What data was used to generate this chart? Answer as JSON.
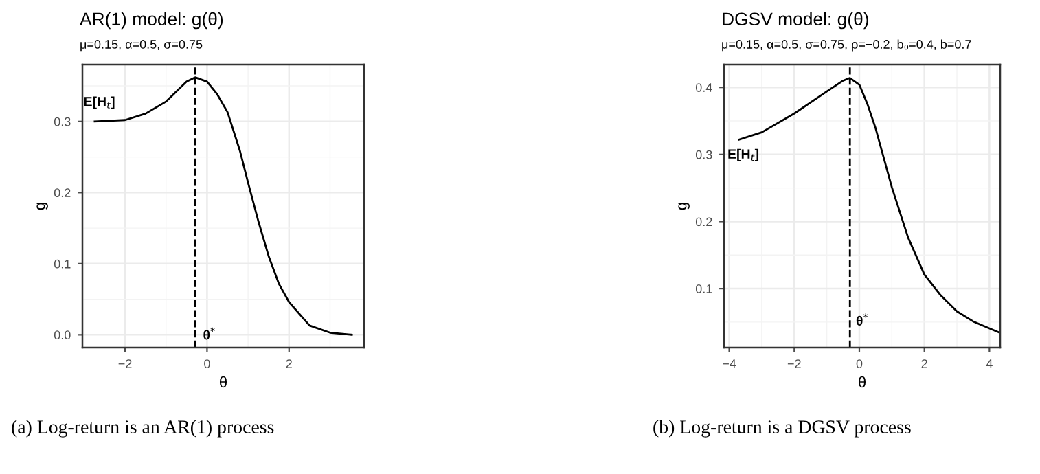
{
  "chart_data": [
    {
      "type": "line",
      "title": "AR(1) model: g(θ)",
      "subtitle": "μ=0.15, α=0.5, σ=0.75",
      "xlabel": "θ",
      "ylabel": "g",
      "x": [
        -2.74,
        -2.0,
        -1.5,
        -1.0,
        -0.5,
        -0.29,
        0.0,
        0.25,
        0.5,
        0.8,
        1.0,
        1.25,
        1.5,
        1.75,
        2.0,
        2.5,
        3.0,
        3.53
      ],
      "series": [
        {
          "color": "#000000",
          "values": [
            0.3,
            0.302,
            0.311,
            0.328,
            0.356,
            0.362,
            0.356,
            0.338,
            0.313,
            0.259,
            0.214,
            0.16,
            0.111,
            0.072,
            0.046,
            0.013,
            0.003,
            0.0
          ]
        }
      ],
      "xlim": [
        -3.04,
        3.83
      ],
      "ylim": [
        -0.018,
        0.38
      ],
      "xticks": [
        -2,
        0,
        2
      ],
      "yticks": [
        {
          "value": 0,
          "label": "0.0"
        },
        0.1,
        0.2,
        0.3
      ],
      "ref_lines": [
        {
          "axis": "x",
          "value": -0.29,
          "line_style": "dashed",
          "color": "#000000"
        }
      ],
      "annotations": [
        "E[H$_{t}$]",
        "θ$^{*}$",
        "(a) Log-return is an AR(1) process"
      ],
      "grid": true,
      "legend": false,
      "marker": "none",
      "line_style": "solid"
    },
    {
      "type": "line",
      "title": "DGSV model: g(θ)",
      "subtitle": "μ=0.15, α=0.5, σ=0.75, ρ=−0.2, b₀=0.4, b=0.7",
      "xlabel": "θ",
      "ylabel": "g",
      "x": [
        -3.7,
        -3.0,
        -2.0,
        -1.0,
        -0.5,
        -0.29,
        0.0,
        0.25,
        0.5,
        1.0,
        1.5,
        2.0,
        2.5,
        3.0,
        3.5,
        4.27
      ],
      "series": [
        {
          "color": "#000000",
          "values": [
            0.322,
            0.333,
            0.361,
            0.394,
            0.41,
            0.414,
            0.404,
            0.375,
            0.339,
            0.251,
            0.176,
            0.121,
            0.09,
            0.066,
            0.051,
            0.035
          ]
        }
      ],
      "xlim": [
        -4.16,
        4.33
      ],
      "ylim": [
        0.012,
        0.434
      ],
      "xticks": [
        -4,
        -2,
        0,
        2,
        4
      ],
      "yticks": [
        0.1,
        0.2,
        0.3,
        0.4
      ],
      "ref_lines": [
        {
          "axis": "x",
          "value": -0.29,
          "line_style": "dashed",
          "color": "#000000"
        }
      ],
      "annotations": [
        "E[H$_{t}$]",
        "θ$^{*}$",
        "(b) Log-return is a DGSV process"
      ],
      "grid": true,
      "legend": false,
      "marker": "none",
      "line_style": "solid"
    }
  ]
}
